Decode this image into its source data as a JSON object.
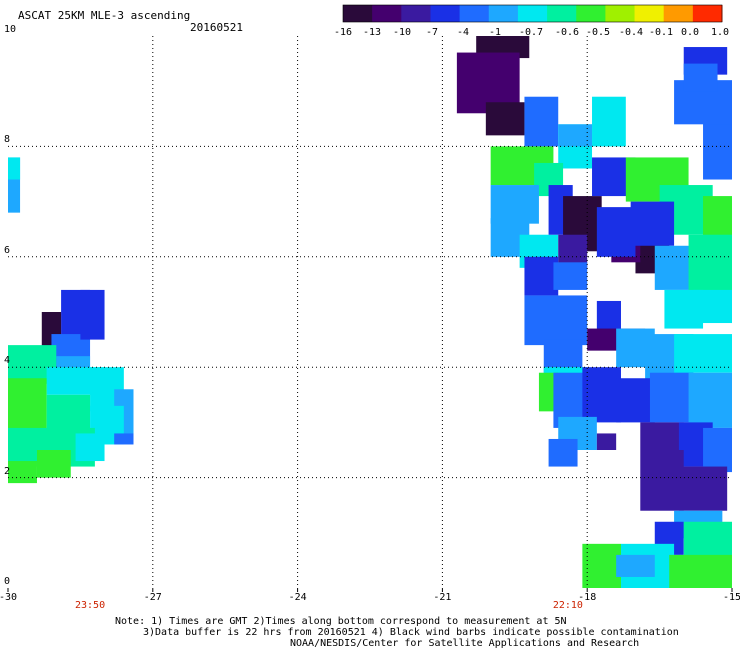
{
  "header": {
    "title": "ASCAT 25KM MLE-3 ascending",
    "date": "20160521"
  },
  "colorbar": {
    "labels": [
      "-16",
      "-13",
      "-10",
      "-7",
      "-4",
      "-1",
      "-0.7",
      "-0.6",
      "-0.5",
      "-0.4",
      "-0.1",
      "0.0",
      "1.0"
    ],
    "colors": [
      "#2a0a3a",
      "#44006e",
      "#3a1aa0",
      "#1a30e6",
      "#1f6cff",
      "#1ea8ff",
      "#00e8f0",
      "#00f0a0",
      "#30f030",
      "#a0f000",
      "#f0f000",
      "#ff9a00",
      "#ff2a00"
    ]
  },
  "axes": {
    "x_ticks": [
      "-30",
      "-27",
      "-24",
      "-21",
      "-18",
      "-15"
    ],
    "y_ticks": [
      "0",
      "2",
      "4",
      "6",
      "8",
      "10"
    ],
    "xlim": [
      -30,
      -15
    ],
    "ylim": [
      0,
      10
    ]
  },
  "time_labels": [
    {
      "text": "23:50",
      "lon": -28.3
    },
    {
      "text": "22:10",
      "lon": -18.4
    }
  ],
  "notes": [
    "Note: 1) Times are GMT 2)Times along bottom correspond to measurement at 5N",
    "3)Data buffer is 22 hrs from 20160521 4) Black wind barbs indicate possible contamination",
    "NOAA/NESDIS/Center for Satellite Applications and Research"
  ],
  "swaths": [
    {
      "name": "west-swath",
      "color": "#00e8f0",
      "cells": [
        [
          -30,
          -29.75,
          6.8,
          7.8,
          "#1ea8ff"
        ],
        [
          -30,
          -29.75,
          7.4,
          7.8,
          "#00e8f0"
        ]
      ]
    },
    {
      "name": "west-swath-main",
      "cells": [
        [
          -28.9,
          -28.3,
          4.5,
          5.4,
          "#1a30e6"
        ],
        [
          -29.3,
          -28.9,
          4.1,
          5.0,
          "#2a0a3a"
        ],
        [
          -29.1,
          -28.3,
          4.0,
          4.6,
          "#1f6cff"
        ],
        [
          -28.5,
          -28.0,
          4.5,
          5.4,
          "#1a30e6"
        ],
        [
          -29.0,
          -28.3,
          3.9,
          4.2,
          "#1ea8ff"
        ],
        [
          -30,
          -29.0,
          3.7,
          4.4,
          "#00f0a0"
        ],
        [
          -29.2,
          -28.0,
          3.5,
          4.0,
          "#00e8f0"
        ],
        [
          -28.3,
          -27.6,
          3.2,
          4.0,
          "#00e8f0"
        ],
        [
          -27.8,
          -27.4,
          2.7,
          3.6,
          "#1ea8ff"
        ],
        [
          -30,
          -29.2,
          2.8,
          3.8,
          "#30f030"
        ],
        [
          -29.2,
          -28.3,
          2.5,
          3.5,
          "#00f0a0"
        ],
        [
          -28.3,
          -27.6,
          2.6,
          3.3,
          "#00e8f0"
        ],
        [
          -30,
          -28.2,
          2.2,
          2.9,
          "#00f0a0"
        ],
        [
          -29.4,
          -28.7,
          2.0,
          2.5,
          "#30f030"
        ],
        [
          -30,
          -29.4,
          1.9,
          2.3,
          "#30f030"
        ],
        [
          -28.6,
          -28.0,
          2.3,
          2.8,
          "#00e8f0"
        ],
        [
          -27.8,
          -27.4,
          2.6,
          2.8,
          "#1f6cff"
        ]
      ]
    },
    {
      "name": "east-swath",
      "cells": [
        [
          -20.3,
          -19.2,
          9.6,
          10.0,
          "#2a0a3a"
        ],
        [
          -20.7,
          -19.4,
          8.6,
          9.7,
          "#44006e"
        ],
        [
          -20.1,
          -19.3,
          8.2,
          8.8,
          "#2a0a3a"
        ],
        [
          -19.3,
          -18.6,
          8.0,
          8.9,
          "#1f6cff"
        ],
        [
          -18.6,
          -17.9,
          7.6,
          8.4,
          "#00e8f0"
        ],
        [
          -17.9,
          -17.2,
          8.0,
          8.9,
          "#00e8f0"
        ],
        [
          -18.6,
          -17.9,
          8.0,
          8.4,
          "#1ea8ff"
        ],
        [
          -20.0,
          -18.7,
          7.3,
          8.0,
          "#30f030"
        ],
        [
          -19.1,
          -18.5,
          7.1,
          7.7,
          "#00f0a0"
        ],
        [
          -20.0,
          -19.0,
          6.6,
          7.3,
          "#1ea8ff"
        ],
        [
          -20.0,
          -19.2,
          6.0,
          6.7,
          "#1ea8ff"
        ],
        [
          -19.4,
          -18.6,
          5.8,
          6.4,
          "#00e8f0"
        ],
        [
          -18.8,
          -18.3,
          6.4,
          7.3,
          "#1a30e6"
        ],
        [
          -18.5,
          -17.7,
          6.1,
          7.1,
          "#2a0a3a"
        ],
        [
          -18.6,
          -18.0,
          5.8,
          6.4,
          "#3a1aa0"
        ],
        [
          -17.9,
          -17.0,
          7.1,
          7.8,
          "#1a30e6"
        ],
        [
          -17.2,
          -15.9,
          7.0,
          7.8,
          "#30f030"
        ],
        [
          -16.5,
          -15.4,
          6.4,
          7.3,
          "#00f0a0"
        ],
        [
          -15.6,
          -15.0,
          6.0,
          7.1,
          "#30f030"
        ],
        [
          -15.6,
          -15.0,
          7.4,
          8.5,
          "#1f6cff"
        ],
        [
          -16.2,
          -15.0,
          8.4,
          9.2,
          "#1f6cff"
        ],
        [
          -16.0,
          -15.1,
          9.3,
          9.8,
          "#1a30e6"
        ],
        [
          -16.0,
          -15.3,
          9.0,
          9.5,
          "#1f6cff"
        ],
        [
          -17.0,
          -16.3,
          5.7,
          6.5,
          "#2a0a3a"
        ],
        [
          -17.5,
          -16.9,
          5.9,
          6.4,
          "#44006e"
        ],
        [
          -17.8,
          -17.0,
          6.0,
          6.9,
          "#1a30e6"
        ],
        [
          -17.1,
          -16.2,
          6.2,
          7.0,
          "#1a30e6"
        ],
        [
          -16.6,
          -15.8,
          5.4,
          6.2,
          "#1ea8ff"
        ],
        [
          -15.9,
          -15.0,
          5.3,
          6.4,
          "#00f0a0"
        ],
        [
          -16.4,
          -15.6,
          4.7,
          5.4,
          "#00e8f0"
        ],
        [
          -15.8,
          -15.0,
          4.8,
          5.4,
          "#00e8f0"
        ],
        [
          -19.3,
          -18.6,
          5.3,
          6.0,
          "#1a30e6"
        ],
        [
          -18.7,
          -18.0,
          5.4,
          5.9,
          "#1f6cff"
        ],
        [
          -19.3,
          -18.0,
          4.4,
          5.3,
          "#1f6cff"
        ],
        [
          -18.9,
          -18.1,
          3.9,
          4.5,
          "#1f6cff"
        ],
        [
          -17.8,
          -17.3,
          4.5,
          5.2,
          "#1a30e6"
        ],
        [
          -18.0,
          -16.8,
          4.3,
          4.7,
          "#44006e"
        ],
        [
          -17.4,
          -16.6,
          4.0,
          4.7,
          "#1ea8ff"
        ],
        [
          -16.8,
          -15.8,
          3.6,
          4.6,
          "#1ea8ff"
        ],
        [
          -16.2,
          -15.0,
          3.9,
          4.6,
          "#00e8f0"
        ],
        [
          -18.9,
          -18.0,
          3.6,
          4.0,
          "#00e8f0"
        ],
        [
          -19.0,
          -18.6,
          3.2,
          3.9,
          "#30f030"
        ],
        [
          -18.7,
          -18.0,
          2.9,
          3.9,
          "#1f6cff"
        ],
        [
          -18.1,
          -17.3,
          3.0,
          4.0,
          "#1a30e6"
        ],
        [
          -17.4,
          -16.6,
          3.0,
          3.8,
          "#1a30e6"
        ],
        [
          -16.7,
          -15.8,
          3.0,
          3.9,
          "#1f6cff"
        ],
        [
          -15.9,
          -15.0,
          2.9,
          3.9,
          "#1ea8ff"
        ],
        [
          -18.6,
          -17.8,
          2.5,
          3.1,
          "#1ea8ff"
        ],
        [
          -18.8,
          -18.2,
          2.2,
          2.7,
          "#1f6cff"
        ],
        [
          -17.8,
          -17.4,
          2.5,
          2.8,
          "#3a1aa0"
        ],
        [
          -16.9,
          -16.0,
          2.5,
          3.0,
          "#3a1aa0"
        ],
        [
          -16.1,
          -15.4,
          2.2,
          3.0,
          "#1a30e6"
        ],
        [
          -15.6,
          -15.0,
          2.1,
          2.9,
          "#1f6cff"
        ],
        [
          -16.9,
          -16.0,
          1.4,
          2.5,
          "#3a1aa0"
        ],
        [
          -16.1,
          -15.1,
          1.4,
          2.2,
          "#3a1aa0"
        ],
        [
          -16.2,
          -15.2,
          0.9,
          1.4,
          "#1ea8ff"
        ],
        [
          -16.6,
          -16.0,
          0.6,
          1.2,
          "#1a30e6"
        ],
        [
          -16.0,
          -15.0,
          0.3,
          1.2,
          "#00f0a0"
        ],
        [
          -17.3,
          -16.2,
          0.0,
          0.8,
          "#00e8f0"
        ],
        [
          -16.3,
          -15.0,
          0.0,
          0.6,
          "#30f030"
        ],
        [
          -18.1,
          -17.3,
          0.0,
          0.8,
          "#30f030"
        ],
        [
          -17.4,
          -16.6,
          0.2,
          0.6,
          "#1ea8ff"
        ]
      ]
    }
  ]
}
